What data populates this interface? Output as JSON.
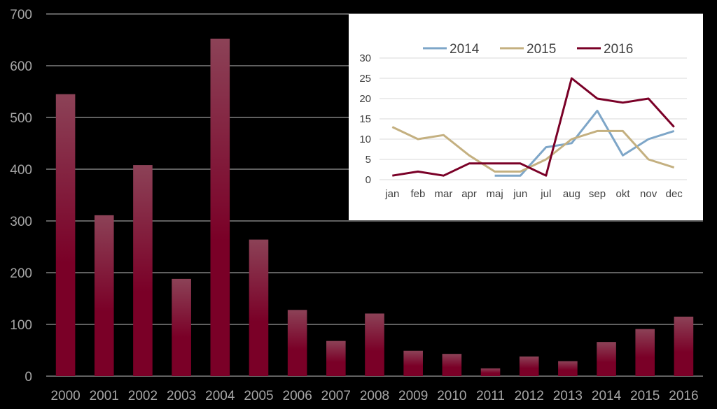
{
  "chart_data": [
    {
      "type": "bar",
      "categories": [
        "2000",
        "2001",
        "2002",
        "2003",
        "2004",
        "2005",
        "2006",
        "2007",
        "2008",
        "2009",
        "2010",
        "2011",
        "2012",
        "2013",
        "2014",
        "2015",
        "2016"
      ],
      "values": [
        545,
        311,
        408,
        188,
        652,
        264,
        128,
        68,
        121,
        49,
        43,
        15,
        38,
        29,
        66,
        91,
        115
      ],
      "ylim": [
        0,
        700
      ],
      "yticks": [
        0,
        100,
        200,
        300,
        400,
        500,
        600,
        700
      ],
      "grid": true,
      "colors": {
        "bar_top": "#8c4257",
        "bar_bottom": "#7a0027",
        "background": "#000000",
        "text": "#a6a6a6",
        "grid": "#bfbfbf"
      }
    },
    {
      "type": "line",
      "categories": [
        "jan",
        "feb",
        "mar",
        "apr",
        "maj",
        "jun",
        "jul",
        "aug",
        "sep",
        "okt",
        "nov",
        "dec"
      ],
      "ylim": [
        0,
        30
      ],
      "yticks": [
        0,
        5,
        10,
        15,
        20,
        25,
        30
      ],
      "legend": "top",
      "series": [
        {
          "name": "2014",
          "color": "#7ea6c8",
          "values": [
            null,
            null,
            null,
            null,
            1,
            1,
            8,
            9,
            17,
            6,
            10,
            12
          ]
        },
        {
          "name": "2015",
          "color": "#c4b080",
          "values": [
            13,
            10,
            11,
            6,
            2,
            2,
            5,
            10,
            12,
            12,
            5,
            3
          ]
        },
        {
          "name": "2016",
          "color": "#7a0027",
          "values": [
            1,
            2,
            1,
            4,
            4,
            4,
            1,
            25,
            20,
            19,
            20,
            13
          ]
        }
      ]
    }
  ]
}
